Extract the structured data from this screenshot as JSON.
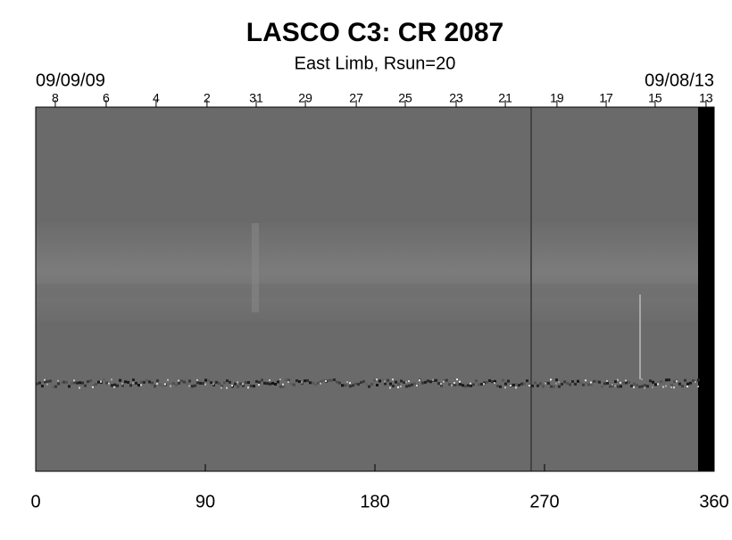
{
  "chart_data": {
    "type": "image",
    "title": "LASCO C3: CR 2087",
    "subtitle": "East Limb, Rsun=20",
    "start_date": "09/09/09",
    "end_date": "09/08/13",
    "xlim": [
      0,
      360
    ],
    "xticks": [
      0,
      90,
      180,
      270,
      360
    ],
    "top_ticks": [
      {
        "value": 10.4,
        "label": "8"
      },
      {
        "value": 37.4,
        "label": "6"
      },
      {
        "value": 63.9,
        "label": "4"
      },
      {
        "value": 90.9,
        "label": "2"
      },
      {
        "value": 117.0,
        "label": "31"
      },
      {
        "value": 143.1,
        "label": "29"
      },
      {
        "value": 170.1,
        "label": "27"
      },
      {
        "value": 196.1,
        "label": "25"
      },
      {
        "value": 223.1,
        "label": "23"
      },
      {
        "value": 249.2,
        "label": "21"
      },
      {
        "value": 276.6,
        "label": "19"
      },
      {
        "value": 302.7,
        "label": "17"
      },
      {
        "value": 328.7,
        "label": "15"
      },
      {
        "value": 355.7,
        "label": "13"
      }
    ]
  }
}
